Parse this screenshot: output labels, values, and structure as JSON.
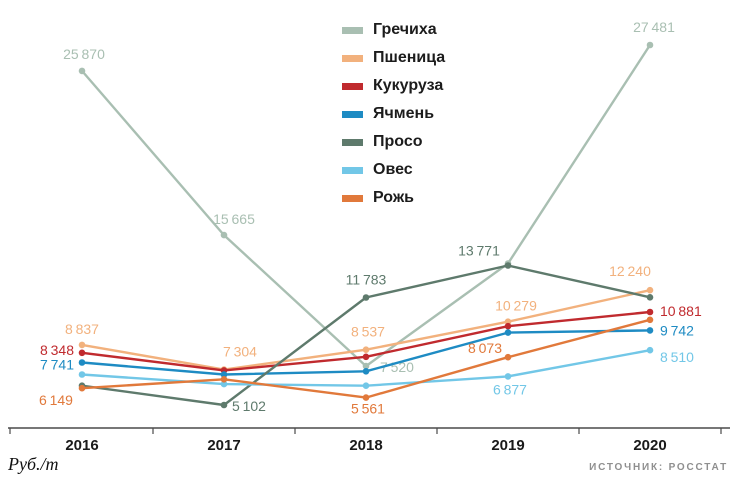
{
  "footer": {
    "y_unit": "Руб./т",
    "source": "ИСТОЧНИК: РОССТАТ"
  },
  "chart_data": {
    "type": "line",
    "categories": [
      "2016",
      "2017",
      "2018",
      "2019",
      "2020"
    ],
    "ylabel": "Руб./т",
    "source": "ИСТОЧНИК: РОССТАТ",
    "grid": false,
    "legend_position": "top-center",
    "ylim": [
      5000,
      28000
    ],
    "series": [
      {
        "key": "buckwheat",
        "name": "Гречиха",
        "color": "#a9bfb2",
        "values": [
          25870,
          15665,
          7520,
          13900,
          27481
        ],
        "labels": [
          {
            "i": 0,
            "text": "25 870",
            "dx": 2,
            "dy": -12,
            "anchor": "middle"
          },
          {
            "i": 1,
            "text": "15 665",
            "dx": 10,
            "dy": -11,
            "anchor": "middle"
          },
          {
            "i": 2,
            "text": "7 520",
            "dx": 14,
            "dy": 6,
            "anchor": "start"
          },
          {
            "i": 4,
            "text": "27 481",
            "dx": 4,
            "dy": -13,
            "anchor": "middle"
          }
        ]
      },
      {
        "key": "wheat",
        "name": "Пшеница",
        "color": "#f2b17d",
        "values": [
          8837,
          7304,
          8537,
          10279,
          12240
        ],
        "labels": [
          {
            "i": 0,
            "text": "8 837",
            "dx": 0,
            "dy": -11,
            "anchor": "middle"
          },
          {
            "i": 1,
            "text": "7 304",
            "dx": 16,
            "dy": -13,
            "anchor": "middle"
          },
          {
            "i": 2,
            "text": "8 537",
            "dx": 2,
            "dy": -13,
            "anchor": "middle"
          },
          {
            "i": 3,
            "text": "10 279",
            "dx": 8,
            "dy": -11,
            "anchor": "middle"
          },
          {
            "i": 4,
            "text": "12 240",
            "dx": -20,
            "dy": -14,
            "anchor": "middle"
          }
        ]
      },
      {
        "key": "corn",
        "name": "Кукуруза",
        "color": "#c02a2e",
        "values": [
          8348,
          7250,
          8100,
          10000,
          10881
        ],
        "labels": [
          {
            "i": 0,
            "text": "8 348",
            "dx": -8,
            "dy": 2,
            "anchor": "end"
          },
          {
            "i": 4,
            "text": "10 881",
            "dx": 10,
            "dy": 4,
            "anchor": "start"
          }
        ]
      },
      {
        "key": "barley",
        "name": "Ячмень",
        "color": "#1e8bc3",
        "values": [
          7741,
          7000,
          7200,
          9600,
          9742
        ],
        "labels": [
          {
            "i": 0,
            "text": "7 741",
            "dx": -8,
            "dy": 7,
            "anchor": "end"
          },
          {
            "i": 4,
            "text": "9 742",
            "dx": 10,
            "dy": 5,
            "anchor": "start"
          }
        ]
      },
      {
        "key": "millet",
        "name": "Просо",
        "color": "#5e7a6c",
        "values": [
          6300,
          5102,
          11783,
          13771,
          11800
        ],
        "labels": [
          {
            "i": 1,
            "text": "5 102",
            "dx": 8,
            "dy": 6,
            "anchor": "start"
          },
          {
            "i": 2,
            "text": "11 783",
            "dx": 0,
            "dy": -13,
            "anchor": "middle"
          },
          {
            "i": 3,
            "text": "13 771",
            "dx": -29,
            "dy": -10,
            "anchor": "middle"
          }
        ]
      },
      {
        "key": "oats",
        "name": "Овес",
        "color": "#72c7e7",
        "values": [
          7000,
          6400,
          6300,
          6877,
          8510
        ],
        "labels": [
          {
            "i": 3,
            "text": "6 877",
            "dx": 2,
            "dy": 18,
            "anchor": "middle"
          },
          {
            "i": 4,
            "text": "8 510",
            "dx": 10,
            "dy": 12,
            "anchor": "start"
          }
        ]
      },
      {
        "key": "rye",
        "name": "Рожь",
        "color": "#e1793b",
        "values": [
          6149,
          6700,
          5561,
          8073,
          10400
        ],
        "labels": [
          {
            "i": 0,
            "text": "6 149",
            "dx": -26,
            "dy": 17,
            "anchor": "middle"
          },
          {
            "i": 2,
            "text": "5 561",
            "dx": 2,
            "dy": 16,
            "anchor": "middle"
          },
          {
            "i": 3,
            "text": "8 073",
            "dx": -6,
            "dy": -4,
            "anchor": "end"
          }
        ]
      }
    ]
  }
}
